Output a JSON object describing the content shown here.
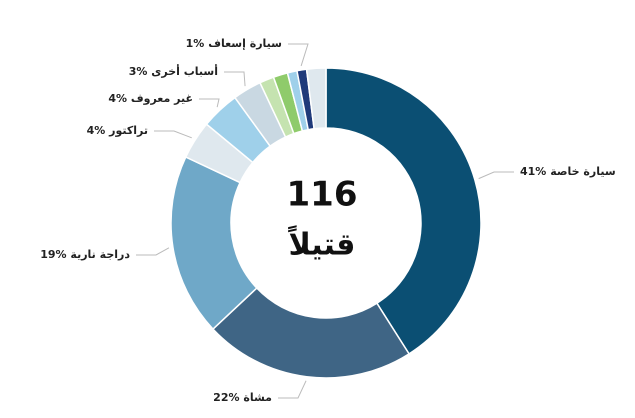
{
  "chart_data": {
    "type": "donut",
    "categories": [
      "سيارة خاصة",
      "مشاة",
      "دراجة نارية",
      "تراكتور",
      "غير معروف",
      "أسباب أخرى",
      null,
      null,
      null,
      "سيارة إسعاف",
      null
    ],
    "values": [
      41,
      22,
      19,
      4,
      4,
      3,
      1.5,
      1.5,
      1,
      1,
      2
    ],
    "value_labels": [
      "41%",
      "22%",
      "19%",
      "4%",
      "4%",
      "3%",
      null,
      null,
      null,
      "1%",
      null
    ],
    "colors": [
      "#0b4f73",
      "#3f6585",
      "#6fa8c8",
      "#dfe8ee",
      "#9fd0ea",
      "#c9d8e2",
      "#c5e3b0",
      "#8fcb6b",
      "#9fd0ea",
      "#1f3a7a",
      "#dfe8ee"
    ],
    "total": 116,
    "total_label": "قتيلاً"
  }
}
